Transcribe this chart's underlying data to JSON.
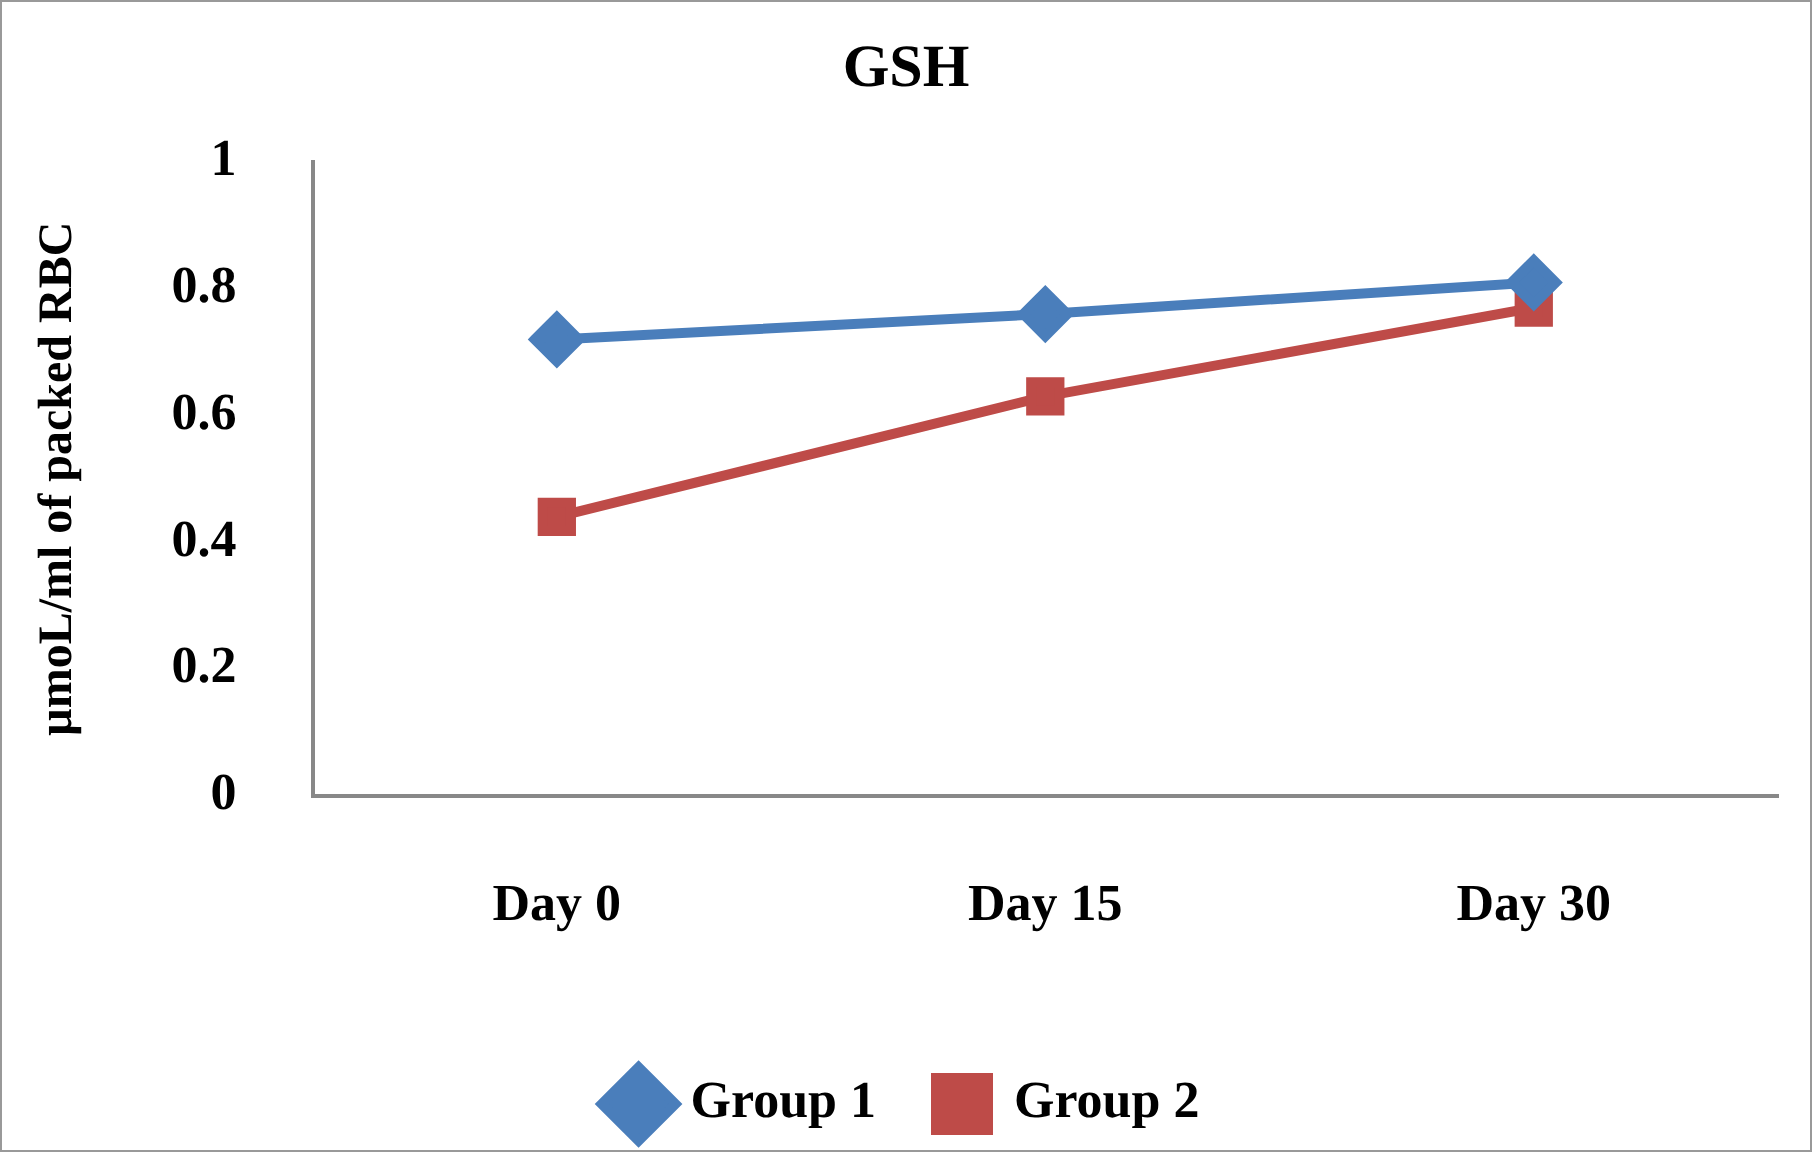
{
  "chart_data": {
    "type": "line",
    "title": "GSH",
    "ylabel": "µmoL/ml of packed RBC",
    "categories": [
      "Day 0",
      "Day 15",
      "Day 30"
    ],
    "series": [
      {
        "name": "Group 1",
        "color": "#4a7ebb",
        "values": [
          0.72,
          0.76,
          0.81
        ],
        "marker": "diamond"
      },
      {
        "name": "Group 2",
        "color": "#be4b48",
        "values": [
          0.44,
          0.63,
          0.77
        ],
        "marker": "square"
      }
    ],
    "ylim": [
      0,
      1
    ],
    "yticks": [
      0,
      0.2,
      0.4,
      0.6,
      0.8,
      1
    ],
    "grid": false,
    "legend": "bottom",
    "line_style": "solid"
  }
}
